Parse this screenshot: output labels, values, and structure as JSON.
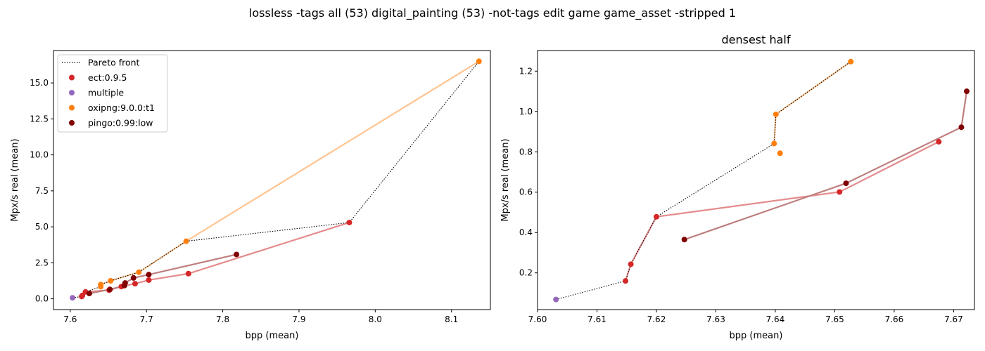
{
  "suptitle": "lossless -tags all (53) digital_painting (53) -not-tags edit game game_asset -stripped 1",
  "colors": {
    "ect": "#d62728",
    "multiple": "#9467bd",
    "oxipng": "#ff7f0e",
    "pingo": "#800000",
    "ect_line": "#e48b8d",
    "oxipng_line": "#ffc48f",
    "pingo_line": "#bf7f7f",
    "pareto": "#000000"
  },
  "chart_data": [
    {
      "type": "scatter",
      "title": "",
      "xlabel": "bpp (mean)",
      "ylabel": "Mpx/s real (mean)",
      "xlim": [
        7.578,
        8.151
      ],
      "ylim": [
        -0.75,
        17.25
      ],
      "xticks": [
        "7.6",
        "7.7",
        "7.8",
        "7.9",
        "8.0",
        "8.1"
      ],
      "xtick_values": [
        7.6,
        7.7,
        7.8,
        7.9,
        8.0,
        8.1
      ],
      "yticks": [
        "0.0",
        "2.5",
        "5.0",
        "7.5",
        "10.0",
        "12.5",
        "15.0"
      ],
      "ytick_values": [
        0.0,
        2.5,
        5.0,
        7.5,
        10.0,
        12.5,
        15.0
      ],
      "legend": {
        "position": "upper-left",
        "entries": [
          "Pareto front",
          "ect:0.9.5",
          "multiple",
          "oxipng:9.0.0:t1",
          "pingo:0.99:low"
        ]
      },
      "series": [
        {
          "name": "ect:0.9.5",
          "color_key": "ect",
          "line_key": "ect_line",
          "x": [
            7.615,
            7.616,
            7.62,
            7.651,
            7.667,
            7.685,
            7.703,
            7.755,
            7.966
          ],
          "y": [
            0.16,
            0.24,
            0.48,
            0.6,
            0.85,
            1.05,
            1.3,
            1.75,
            5.3
          ]
        },
        {
          "name": "multiple",
          "color_key": "multiple",
          "line_key": "multiple",
          "x": [
            7.603
          ],
          "y": [
            0.07
          ]
        },
        {
          "name": "oxipng:9.0.0:t1",
          "color_key": "oxipng",
          "line_key": "oxipng_line",
          "x": [
            7.64,
            7.64,
            7.653,
            7.69,
            7.752,
            8.136
          ],
          "y": [
            0.84,
            0.99,
            1.25,
            1.85,
            4.0,
            16.5
          ]
        },
        {
          "name": "pingo:0.99:low",
          "color_key": "pingo",
          "line_key": "pingo_line",
          "x": [
            7.625,
            7.652,
            7.671,
            7.672,
            7.683,
            7.703,
            7.818
          ],
          "y": [
            0.37,
            0.65,
            0.92,
            1.1,
            1.45,
            1.68,
            3.08
          ]
        }
      ],
      "pareto": {
        "x": [
          7.603,
          7.615,
          7.616,
          7.62,
          7.64,
          7.64,
          7.653,
          7.69,
          7.752,
          7.966,
          8.136
        ],
        "y": [
          0.07,
          0.16,
          0.24,
          0.48,
          0.84,
          0.99,
          1.25,
          1.85,
          4.0,
          5.3,
          16.5
        ]
      }
    },
    {
      "type": "scatter",
      "title": "densest half",
      "xlabel": "bpp (mean)",
      "ylabel": "Mpx/s real (mean)",
      "xlim": [
        7.6,
        7.6735
      ],
      "ylim": [
        0.018,
        1.302
      ],
      "xticks": [
        "7.60",
        "7.61",
        "7.62",
        "7.63",
        "7.64",
        "7.65",
        "7.66",
        "7.67"
      ],
      "xtick_values": [
        7.6,
        7.61,
        7.62,
        7.63,
        7.64,
        7.65,
        7.66,
        7.67
      ],
      "yticks": [
        "0.2",
        "0.4",
        "0.6",
        "0.8",
        "1.0",
        "1.2"
      ],
      "ytick_values": [
        0.2,
        0.4,
        0.6,
        0.8,
        1.0,
        1.2
      ],
      "series": [
        {
          "name": "ect:0.9.5",
          "color_key": "ect",
          "line_key": "ect_line",
          "x": [
            7.6148,
            7.6157,
            7.62,
            7.6508,
            7.6675
          ],
          "y": [
            0.16,
            0.243,
            0.478,
            0.601,
            0.85
          ]
        },
        {
          "name": "multiple",
          "color_key": "multiple",
          "line_key": "multiple",
          "x": [
            7.6031
          ],
          "y": [
            0.068
          ]
        },
        {
          "name": "oxipng:9.0.0:t1",
          "color_key": "oxipng",
          "line_key": "oxipng_line",
          "x": [
            7.6398,
            7.6401,
            7.6527
          ],
          "y": [
            0.841,
            0.986,
            1.247
          ]
        },
        {
          "name": "oxipng:9.0.0:t1-extra",
          "color_key": "oxipng",
          "line_key": "none",
          "x": [
            7.6408
          ],
          "y": [
            0.793
          ]
        },
        {
          "name": "pingo:0.99:low",
          "color_key": "pingo",
          "line_key": "pingo_line",
          "x": [
            7.6247,
            7.6519,
            7.6713,
            7.6722
          ],
          "y": [
            0.365,
            0.644,
            0.922,
            1.1
          ]
        }
      ],
      "pareto": {
        "x": [
          7.6031,
          7.6148,
          7.6157,
          7.62,
          7.6398,
          7.6401,
          7.6527
        ],
        "y": [
          0.068,
          0.16,
          0.243,
          0.478,
          0.841,
          0.986,
          1.247
        ]
      }
    }
  ]
}
